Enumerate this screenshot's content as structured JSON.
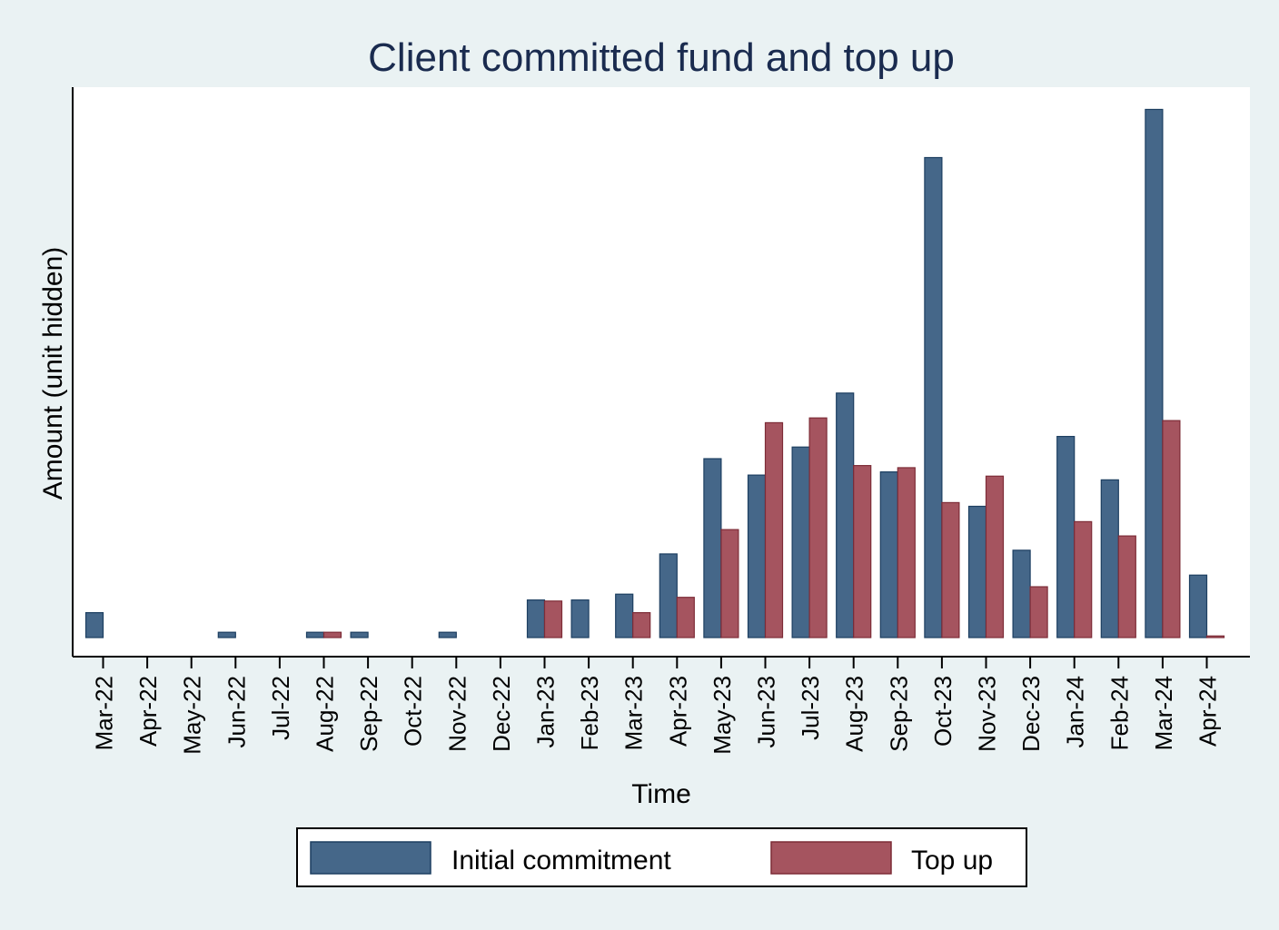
{
  "chart_data": {
    "type": "bar",
    "title": "Client committed fund and top up",
    "xlabel": "Time",
    "ylabel": "Amount (unit hidden)",
    "y_tick_labels_shown": false,
    "grid": false,
    "legend_position": "bottom",
    "categories": [
      "Mar-22",
      "Apr-22",
      "May-22",
      "Jun-22",
      "Jul-22",
      "Aug-22",
      "Sep-22",
      "Oct-22",
      "Nov-22",
      "Dec-22",
      "Jan-23",
      "Feb-23",
      "Mar-23",
      "Apr-23",
      "May-23",
      "Jun-23",
      "Jul-23",
      "Aug-23",
      "Sep-23",
      "Oct-23",
      "Nov-23",
      "Dec-23",
      "Jan-24",
      "Feb-24",
      "Mar-24",
      "Apr-24"
    ],
    "series": [
      {
        "name": "Initial commitment",
        "color": "#456789",
        "values": [
          0.047,
          0,
          0,
          0.01,
          0,
          0.01,
          0.01,
          0,
          0.01,
          0,
          0.071,
          0.071,
          0.082,
          0.158,
          0.338,
          0.307,
          0.36,
          0.462,
          0.313,
          0.907,
          0.248,
          0.165,
          0.38,
          0.298,
          0.998,
          0.118
        ]
      },
      {
        "name": "Top up",
        "color": "#a5545f",
        "values": [
          0,
          0,
          0,
          0,
          0,
          0.01,
          0,
          0,
          0,
          0,
          0.069,
          0,
          0.047,
          0.076,
          0.204,
          0.406,
          0.415,
          0.325,
          0.321,
          0.255,
          0.305,
          0.096,
          0.219,
          0.192,
          0.41,
          0.003
        ]
      }
    ],
    "ylim": [
      0,
      1.04
    ]
  }
}
